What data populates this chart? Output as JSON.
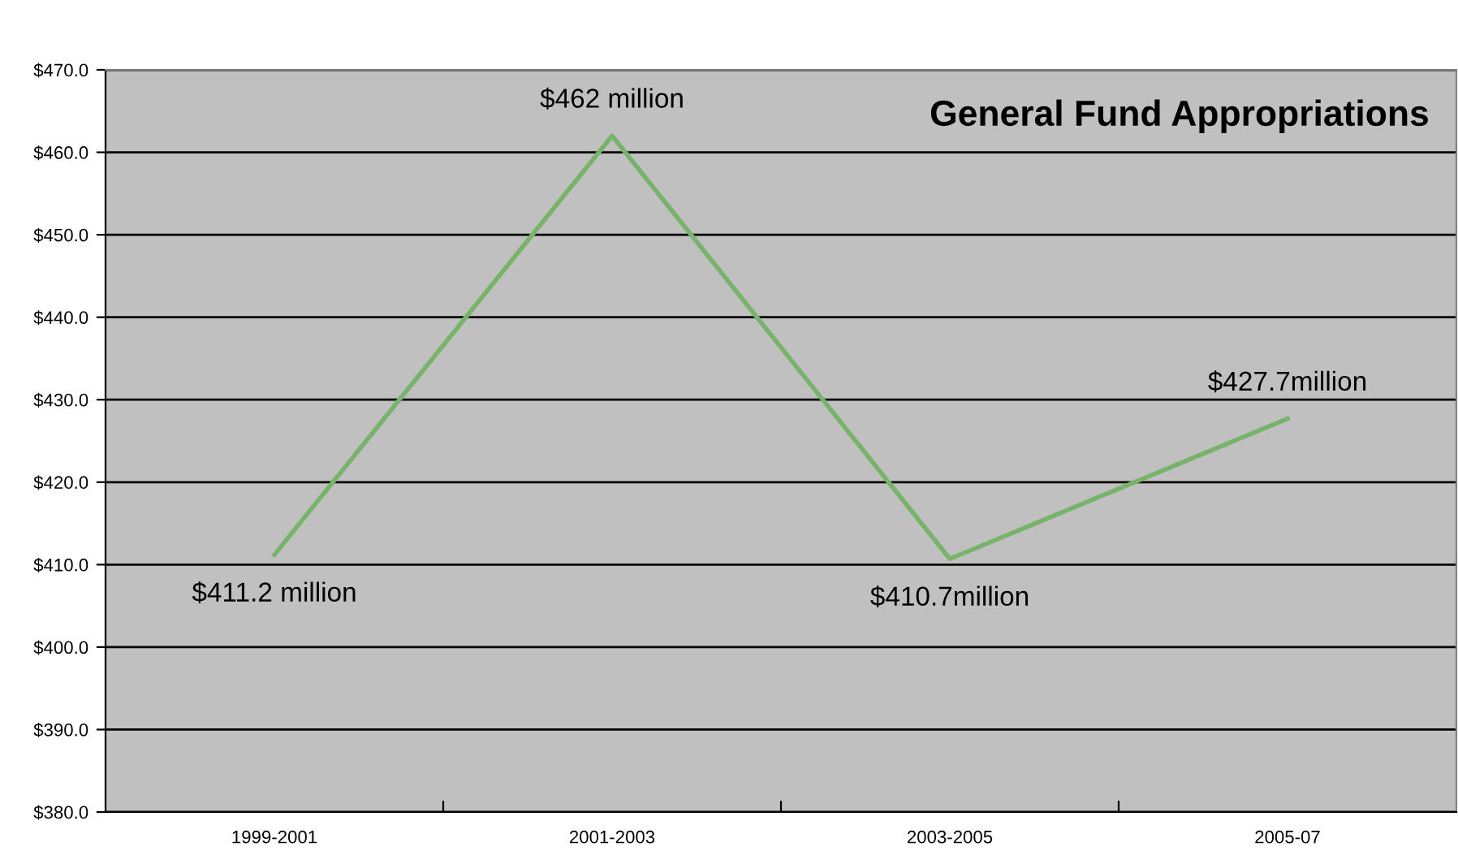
{
  "chart_data": {
    "type": "line",
    "title": "General Fund Appropriations",
    "categories": [
      "1999-2001",
      "2001-2003",
      "2003-2005",
      "2005-07"
    ],
    "series": [
      {
        "color": "#77b36b",
        "values": [
          411.2,
          462,
          410.7,
          427.7
        ],
        "value_labels": [
          "$411.2 million",
          "$462 million",
          "$410.7million",
          "$427.7million"
        ]
      }
    ],
    "ylim": [
      380,
      470
    ],
    "yticks": [
      {
        "value": 380,
        "label": "$380.0"
      },
      {
        "value": 390,
        "label": "$390.0"
      },
      {
        "value": 400,
        "label": "$400.0"
      },
      {
        "value": 410,
        "label": "$410.0"
      },
      {
        "value": 420,
        "label": "$420.0"
      },
      {
        "value": 430,
        "label": "$430.0"
      },
      {
        "value": 440,
        "label": "$440.0"
      },
      {
        "value": 450,
        "label": "$450.0"
      },
      {
        "value": 460,
        "label": "$460.0"
      },
      {
        "value": 470,
        "label": "$470.0"
      }
    ],
    "grid": "y",
    "marker": "none",
    "line_style": "solid"
  }
}
